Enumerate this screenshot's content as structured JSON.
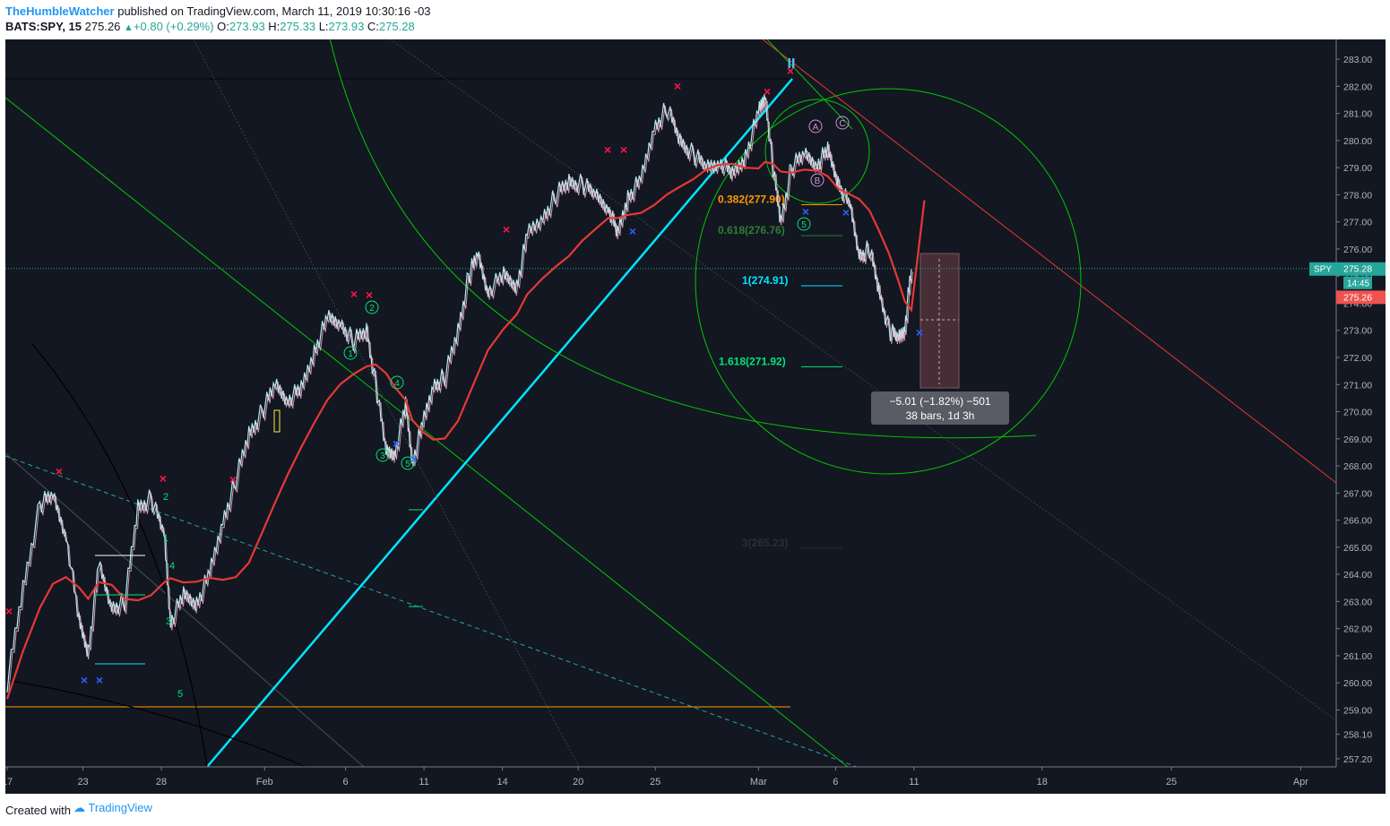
{
  "header": {
    "publisher": "TheHumbleWatcher",
    "published_text": "published on TradingView.com, March 11, 2019 10:30:16 -03",
    "symbol": "BATS:SPY, 15",
    "last": "275.26",
    "change": "+0.80 (+0.29%)",
    "open_label": "O:",
    "open": "273.93",
    "high_label": "H:",
    "high": "275.33",
    "low_label": "L:",
    "low": "273.93",
    "close_label": "C:",
    "close": "275.28"
  },
  "footer": {
    "created_with": "Created with",
    "brand": "TradingView"
  },
  "chart_data": {
    "type": "line",
    "title": "",
    "ylim": [
      256.9,
      283.4
    ],
    "y_ticks": [
      "283.00",
      "282.00",
      "281.00",
      "280.00",
      "279.00",
      "278.00",
      "277.00",
      "276.00",
      "275.00",
      "274.00",
      "273.00",
      "272.00",
      "271.00",
      "270.00",
      "269.00",
      "268.00",
      "267.00",
      "266.00",
      "265.00",
      "264.00",
      "263.00",
      "262.00",
      "261.00",
      "260.00",
      "259.00",
      "258.10",
      "257.20"
    ],
    "x_ticks": [
      {
        "label": "17",
        "pos": 0.0
      },
      {
        "label": "23",
        "pos": 0.058
      },
      {
        "label": "28",
        "pos": 0.118
      },
      {
        "label": "Feb",
        "pos": 0.197
      },
      {
        "label": "6",
        "pos": 0.259
      },
      {
        "label": "11",
        "pos": 0.319
      },
      {
        "label": "14",
        "pos": 0.379
      },
      {
        "label": "20",
        "pos": 0.437
      },
      {
        "label": "25",
        "pos": 0.496
      },
      {
        "label": "Mar",
        "pos": 0.575
      },
      {
        "label": "6",
        "pos": 0.634
      },
      {
        "label": "11",
        "pos": 0.694
      },
      {
        "label": "18",
        "pos": 0.792
      },
      {
        "label": "25",
        "pos": 0.891
      },
      {
        "label": "Apr",
        "pos": 0.99
      }
    ],
    "price_path": [
      [
        0.0,
        260.0
      ],
      [
        0.012,
        263.5
      ],
      [
        0.025,
        266.6
      ],
      [
        0.035,
        266.9
      ],
      [
        0.045,
        265.5
      ],
      [
        0.055,
        262.2
      ],
      [
        0.062,
        261.2
      ],
      [
        0.07,
        264.3
      ],
      [
        0.08,
        262.8
      ],
      [
        0.09,
        263.0
      ],
      [
        0.1,
        266.5
      ],
      [
        0.11,
        266.8
      ],
      [
        0.12,
        265.5
      ],
      [
        0.125,
        262.3
      ],
      [
        0.135,
        263.2
      ],
      [
        0.145,
        263.0
      ],
      [
        0.155,
        264.0
      ],
      [
        0.165,
        266.0
      ],
      [
        0.175,
        267.5
      ],
      [
        0.185,
        269.2
      ],
      [
        0.195,
        270.0
      ],
      [
        0.205,
        271.0
      ],
      [
        0.215,
        270.5
      ],
      [
        0.225,
        270.8
      ],
      [
        0.235,
        272.3
      ],
      [
        0.245,
        273.4
      ],
      [
        0.255,
        273.3
      ],
      [
        0.265,
        272.6
      ],
      [
        0.275,
        273.0
      ],
      [
        0.282,
        271.0
      ],
      [
        0.29,
        268.5
      ],
      [
        0.297,
        268.6
      ],
      [
        0.305,
        270.2
      ],
      [
        0.31,
        268.2
      ],
      [
        0.318,
        269.5
      ],
      [
        0.326,
        271.0
      ],
      [
        0.335,
        271.3
      ],
      [
        0.345,
        273.0
      ],
      [
        0.353,
        275.0
      ],
      [
        0.36,
        275.8
      ],
      [
        0.368,
        274.5
      ],
      [
        0.38,
        275.0
      ],
      [
        0.39,
        274.7
      ],
      [
        0.398,
        276.5
      ],
      [
        0.41,
        277.2
      ],
      [
        0.42,
        278.0
      ],
      [
        0.43,
        278.5
      ],
      [
        0.44,
        278.4
      ],
      [
        0.45,
        278.0
      ],
      [
        0.46,
        277.6
      ],
      [
        0.467,
        276.5
      ],
      [
        0.475,
        278.0
      ],
      [
        0.485,
        278.5
      ],
      [
        0.495,
        280.5
      ],
      [
        0.505,
        281.2
      ],
      [
        0.515,
        280.0
      ],
      [
        0.525,
        279.5
      ],
      [
        0.535,
        279.0
      ],
      [
        0.545,
        279.3
      ],
      [
        0.555,
        278.7
      ],
      [
        0.565,
        279.5
      ],
      [
        0.575,
        281.0
      ],
      [
        0.58,
        281.7
      ],
      [
        0.586,
        279.0
      ],
      [
        0.592,
        277.0
      ],
      [
        0.6,
        279.0
      ],
      [
        0.61,
        279.5
      ],
      [
        0.62,
        279.2
      ],
      [
        0.628,
        279.6
      ],
      [
        0.636,
        278.5
      ],
      [
        0.645,
        277.5
      ],
      [
        0.652,
        275.8
      ],
      [
        0.66,
        276.0
      ],
      [
        0.667,
        274.5
      ],
      [
        0.675,
        273.0
      ],
      [
        0.682,
        272.7
      ],
      [
        0.687,
        273.2
      ],
      [
        0.692,
        275.26
      ]
    ],
    "annotations": {
      "fib_0382": "0.382(277.90)",
      "fib_0618": "0.618(276.76)",
      "fib_1": "1(274.91)",
      "fib_1618": "1.618(271.92)",
      "fib_3": "3(265.23)",
      "measure_line1": "−5.01 (−1.82%) −501",
      "measure_line2": "38 bars, 1d 3h",
      "price_tag_symbol": "SPY",
      "price_tag_value": "275.28",
      "countdown": "14:45",
      "last_tag": "275.26",
      "wave_top": "II",
      "circled": [
        "1",
        "2",
        "3",
        "4",
        "5",
        "5",
        "A",
        "B",
        "C"
      ],
      "loose_wave": [
        "2",
        "1",
        "4",
        "3",
        "5"
      ]
    }
  }
}
